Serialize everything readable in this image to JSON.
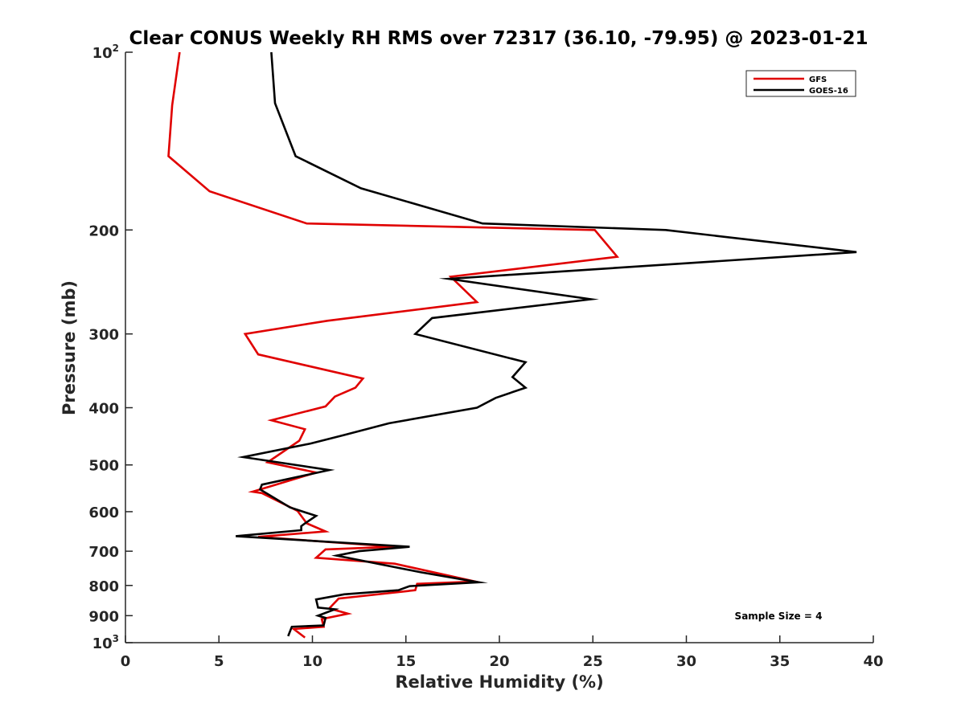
{
  "chart_data": {
    "type": "line",
    "title": "Clear CONUS Weekly RH RMS over 72317 (36.10, -79.95) @ 2023-01-21",
    "xlabel": "Relative Humidity (%)",
    "ylabel": "Pressure (mb)",
    "xlim": [
      0,
      40
    ],
    "ylim": [
      100,
      1000
    ],
    "y_scale": "log",
    "y_reversed": true,
    "x_ticks": [
      0,
      5,
      10,
      15,
      20,
      25,
      30,
      35,
      40
    ],
    "x_tick_labels": [
      "0",
      "5",
      "10",
      "15",
      "20",
      "25",
      "30",
      "35",
      "40"
    ],
    "y_ticks": [
      {
        "value": 100,
        "base": "10",
        "exp": "2"
      },
      {
        "value": 200,
        "label": "200"
      },
      {
        "value": 300,
        "label": "300"
      },
      {
        "value": 400,
        "label": "400"
      },
      {
        "value": 500,
        "label": "500"
      },
      {
        "value": 600,
        "label": "600"
      },
      {
        "value": 700,
        "label": "700"
      },
      {
        "value": 800,
        "label": "800"
      },
      {
        "value": 900,
        "label": "900"
      },
      {
        "value": 1000,
        "base": "10",
        "exp": "3"
      }
    ],
    "grid": false,
    "legend_position": "top-right",
    "annotation": "Sample Size = 4",
    "series": [
      {
        "name": "GFS",
        "color": "#e00000",
        "x": [
          2.9,
          2.5,
          2.3,
          4.5,
          9.7,
          25.1,
          26.3,
          17.4,
          18.8,
          10.8,
          6.4,
          7.1,
          12.7,
          12.3,
          11.2,
          10.7,
          7.8,
          9.6,
          9.3,
          7.6,
          10.2,
          6.8,
          7.3,
          9.2,
          9.7,
          10.7,
          7.1,
          14.4,
          10.7,
          10.2,
          14.4,
          18.7,
          15.6,
          15.5,
          11.4,
          10.9,
          11.9,
          10.5,
          10.6,
          9.0,
          9.6
        ],
        "y": [
          100,
          123,
          150,
          172,
          195,
          200,
          222,
          240,
          265,
          285,
          300,
          325,
          357,
          370,
          383,
          398,
          420,
          435,
          455,
          495,
          515,
          555,
          558,
          598,
          628,
          648,
          662,
          688,
          695,
          718,
          735,
          788,
          795,
          815,
          842,
          875,
          893,
          912,
          940,
          948,
          980
        ]
      },
      {
        "name": "GOES-16",
        "color": "#000000",
        "x": [
          7.8,
          8.0,
          9.1,
          12.6,
          19.1,
          28.9,
          39.1,
          17.3,
          24.9,
          16.4,
          15.5,
          21.4,
          20.7,
          21.4,
          19.8,
          18.8,
          14.1,
          11.7,
          9.9,
          6.3,
          10.9,
          7.3,
          7.2,
          8.8,
          10.2,
          9.6,
          9.4,
          9.4,
          5.9,
          15.2,
          12.5,
          11.3,
          15.8,
          18.9,
          15.2,
          14.6,
          11.7,
          10.2,
          10.3,
          11.2,
          10.3,
          10.7,
          10.6,
          8.9,
          8.7
        ],
        "y": [
          100,
          122,
          150,
          170,
          195,
          200,
          218,
          242,
          262,
          282,
          300,
          335,
          355,
          370,
          385,
          400,
          425,
          445,
          460,
          485,
          510,
          540,
          550,
          590,
          610,
          628,
          635,
          645,
          660,
          688,
          700,
          712,
          760,
          790,
          802,
          815,
          828,
          845,
          872,
          878,
          900,
          908,
          935,
          940,
          975
        ]
      }
    ]
  }
}
